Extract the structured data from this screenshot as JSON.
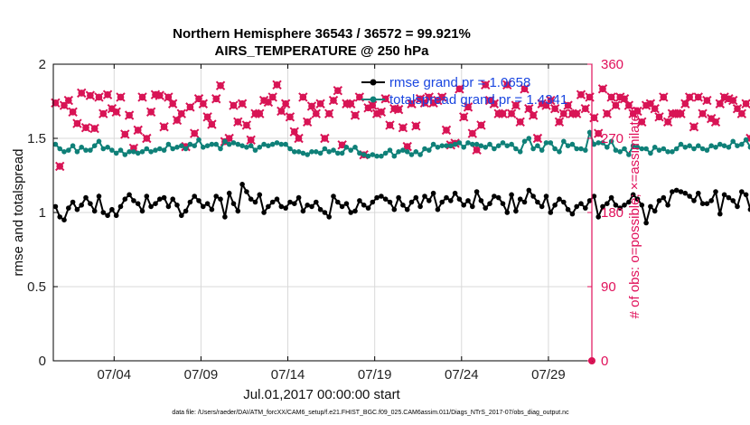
{
  "colors": {
    "rmse": "#000000",
    "spread": "#0f8078",
    "obs": "#d81455",
    "legend_text": "#1a46e0",
    "right_axis": "#e0105a",
    "grid": "#d9d9d9"
  },
  "chart_data": {
    "type": "line",
    "title": "Northern Hemisphere 36543 / 36572 = 99.921%",
    "subtitle": "AIRS_TEMPERATURE @ 250 hPa",
    "xlabel": "Jul.01,2017 00:00:00 start",
    "ylabel": "rmse and totalspread",
    "y2label": "# of obs: o=possible; ×=assimilated",
    "footnote": "data file: /Users/raeder/DAI/ATM_forcXX/CAM6_setup/f.e21.FHIST_BGC.f09_025.CAM6assim.011/Diags_NTrS_2017-07/obs_diag_output.nc",
    "xlim": [
      0.5,
      31.5
    ],
    "ylim": [
      0,
      2
    ],
    "y2lim": [
      0,
      360
    ],
    "x_ticks": [
      {
        "x": 4,
        "label": "07/04"
      },
      {
        "x": 9,
        "label": "07/09"
      },
      {
        "x": 14,
        "label": "07/14"
      },
      {
        "x": 19,
        "label": "07/19"
      },
      {
        "x": 24,
        "label": "07/24"
      },
      {
        "x": 29,
        "label": "07/29"
      }
    ],
    "y_ticks": [
      {
        "y": 0,
        "label": "0"
      },
      {
        "y": 0.5,
        "label": "0.5"
      },
      {
        "y": 1,
        "label": "1"
      },
      {
        "y": 1.5,
        "label": "1.5"
      },
      {
        "y": 2,
        "label": "2"
      }
    ],
    "y2_ticks": [
      {
        "y": 0,
        "label": "0"
      },
      {
        "y": 90,
        "label": "90"
      },
      {
        "y": 180,
        "label": "180"
      },
      {
        "y": 270,
        "label": "270"
      },
      {
        "y": 360,
        "label": "360"
      }
    ],
    "grid": true,
    "legend": {
      "location": "top-right"
    },
    "step_days": 0.25,
    "x_start": 0.625,
    "series": [
      {
        "name": "rmse",
        "legend": "rmse grand pr = 1.0658",
        "axis": "left",
        "marker": "circle",
        "values": [
          1.04,
          0.97,
          0.95,
          1.03,
          1.07,
          1.02,
          1.05,
          1.1,
          1.06,
          1.01,
          1.11,
          1.0,
          0.98,
          1.02,
          0.98,
          1.04,
          1.09,
          1.12,
          1.08,
          1.06,
          1.01,
          1.11,
          1.04,
          1.06,
          1.09,
          1.1,
          1.04,
          1.09,
          1.05,
          0.98,
          1.01,
          1.07,
          1.11,
          1.08,
          1.04,
          1.06,
          1.02,
          1.11,
          1.09,
          0.97,
          1.13,
          1.06,
          1.01,
          1.19,
          1.14,
          1.09,
          1.07,
          1.12,
          1.0,
          1.04,
          1.07,
          1.09,
          1.04,
          1.03,
          1.07,
          1.06,
          1.1,
          1.01,
          1.05,
          1.04,
          1.07,
          1.02,
          1.0,
          0.97,
          1.11,
          1.07,
          1.04,
          1.06,
          1.0,
          1.01,
          1.08,
          1.05,
          1.03,
          1.07,
          1.1,
          1.11,
          1.09,
          1.07,
          1.02,
          1.1,
          1.05,
          1.02,
          1.07,
          1.1,
          1.04,
          1.11,
          1.08,
          1.13,
          1.02,
          1.07,
          1.1,
          1.08,
          1.13,
          1.09,
          1.05,
          1.08,
          1.04,
          1.14,
          1.08,
          1.03,
          1.06,
          1.11,
          1.1,
          1.06,
          1.0,
          1.12,
          1.01,
          1.09,
          1.07,
          1.15,
          1.11,
          1.07,
          1.04,
          1.11,
          1.0,
          1.05,
          1.09,
          1.07,
          1.02,
          0.99,
          1.04,
          1.06,
          1.03,
          1.08,
          1.11,
          0.97,
          1.04,
          1.06,
          1.1,
          1.05,
          1.03,
          1.05,
          1.07,
          1.12,
          1.09,
          1.05,
          0.93,
          1.04,
          1.01,
          1.08,
          1.1,
          1.05,
          1.14,
          1.15,
          1.14,
          1.13,
          1.11,
          1.08,
          1.13,
          1.06,
          1.06,
          1.08,
          1.14,
          0.99,
          1.12,
          1.1,
          1.08,
          1.04,
          1.14,
          1.12,
          1.02,
          1.03,
          1.07,
          1.04,
          1.06,
          1.02,
          1.06,
          1.04,
          1.1,
          1.01,
          1.06,
          0.99,
          1.11,
          0.95,
          1.02,
          0.97,
          1.0,
          1.09,
          1.05,
          1.03,
          1.07,
          1.04,
          1.05,
          1.09,
          1.05,
          1.09,
          1.06,
          1.04,
          1.14,
          1.16,
          1.13,
          1.19,
          1.22,
          1.12,
          1.08,
          1.1,
          1.07,
          1.13,
          1.12,
          1.11
        ]
      },
      {
        "name": "totalspread",
        "legend": "totalspread grand pr = 1.4341",
        "axis": "left",
        "marker": "circle",
        "values": [
          1.46,
          1.43,
          1.41,
          1.42,
          1.45,
          1.41,
          1.44,
          1.42,
          1.42,
          1.45,
          1.48,
          1.43,
          1.44,
          1.42,
          1.4,
          1.42,
          1.39,
          1.41,
          1.41,
          1.4,
          1.41,
          1.43,
          1.41,
          1.42,
          1.43,
          1.42,
          1.46,
          1.43,
          1.44,
          1.45,
          1.43,
          1.46,
          1.45,
          1.49,
          1.44,
          1.45,
          1.46,
          1.46,
          1.43,
          1.48,
          1.46,
          1.47,
          1.46,
          1.45,
          1.44,
          1.45,
          1.42,
          1.44,
          1.46,
          1.45,
          1.46,
          1.47,
          1.46,
          1.46,
          1.43,
          1.41,
          1.41,
          1.4,
          1.39,
          1.41,
          1.41,
          1.4,
          1.43,
          1.41,
          1.42,
          1.4,
          1.4,
          1.44,
          1.42,
          1.44,
          1.4,
          1.39,
          1.38,
          1.39,
          1.38,
          1.38,
          1.4,
          1.42,
          1.38,
          1.41,
          1.42,
          1.41,
          1.39,
          1.41,
          1.39,
          1.43,
          1.42,
          1.46,
          1.44,
          1.45,
          1.45,
          1.45,
          1.46,
          1.47,
          1.44,
          1.47,
          1.46,
          1.46,
          1.45,
          1.44,
          1.46,
          1.43,
          1.45,
          1.47,
          1.45,
          1.46,
          1.43,
          1.41,
          1.48,
          1.5,
          1.43,
          1.45,
          1.42,
          1.47,
          1.47,
          1.43,
          1.41,
          1.48,
          1.45,
          1.46,
          1.43,
          1.43,
          1.42,
          1.54,
          1.46,
          1.47,
          1.47,
          1.44,
          1.48,
          1.42,
          1.41,
          1.43,
          1.39,
          1.45,
          1.44,
          1.43,
          1.43,
          1.4,
          1.44,
          1.42,
          1.43,
          1.41,
          1.41,
          1.43,
          1.46,
          1.44,
          1.45,
          1.43,
          1.45,
          1.43,
          1.42,
          1.45,
          1.44,
          1.46,
          1.45,
          1.44,
          1.48,
          1.45,
          1.46,
          1.49,
          1.44,
          1.52,
          1.44,
          1.45,
          1.47,
          1.5,
          1.53,
          1.46,
          1.49,
          1.45,
          1.48,
          1.47,
          1.44,
          1.43,
          1.42,
          1.46,
          1.41,
          1.43,
          1.42,
          1.41,
          1.44,
          1.42,
          1.41,
          1.43,
          1.44,
          1.45,
          1.43,
          1.42,
          1.41,
          1.44,
          1.42,
          1.46,
          1.41,
          1.44,
          1.43,
          1.45,
          1.45,
          1.44,
          1.42,
          1.41,
          1.43,
          1.42,
          1.43,
          1.44,
          1.42,
          1.41
        ]
      },
      {
        "name": "obs count",
        "legend": "",
        "axis": "right",
        "marker": "x",
        "values": [
          313,
          236,
          310,
          316,
          302,
          288,
          325,
          283,
          322,
          282,
          320,
          300,
          323,
          306,
          302,
          320,
          275,
          298,
          258,
          280,
          320,
          270,
          302,
          323,
          322,
          284,
          320,
          312,
          292,
          300,
          260,
          308,
          276,
          318,
          312,
          296,
          287,
          318,
          334,
          266,
          270,
          310,
          290,
          312,
          286,
          268,
          300,
          300,
          316,
          314,
          320,
          335,
          303,
          312,
          296,
          278,
          270,
          320,
          290,
          309,
          300,
          312,
          270,
          300,
          316,
          328,
          262,
          312,
          312,
          298,
          320,
          250,
          307,
          310,
          300,
          302,
          318,
          286,
          306,
          305,
          283,
          260,
          312,
          285,
          318,
          313,
          320,
          313,
          316,
          320,
          280,
          262,
          264,
          330,
          296,
          308,
          276,
          256,
          286,
          335,
          316,
          312,
          300,
          300,
          335,
          300,
          310,
          290,
          330,
          306,
          298,
          270,
          312,
          310,
          316,
          306,
          290,
          300,
          310,
          300,
          300,
          323,
          306,
          320,
          295,
          276,
          330,
          300,
          320,
          310,
          320,
          318,
          310,
          300,
          303,
          290,
          310,
          312,
          306,
          296,
          320,
          290,
          300,
          300,
          300,
          312,
          320,
          284,
          320,
          300,
          316,
          294,
          290,
          312,
          320,
          318,
          316,
          306,
          300,
          312,
          270,
          296,
          280,
          300,
          300,
          290,
          296,
          274,
          286,
          262,
          276,
          312,
          290,
          308,
          300,
          302,
          312,
          292,
          300,
          316,
          308,
          294,
          306,
          264,
          296,
          300,
          294,
          308,
          312,
          274,
          300,
          306,
          280,
          296,
          300,
          270,
          296,
          308,
          300,
          320,
          296,
          330,
          300,
          290,
          310,
          316,
          304,
          314,
          310
        ]
      }
    ],
    "obs_last_point": {
      "x": 31.5,
      "y": 0
    }
  }
}
